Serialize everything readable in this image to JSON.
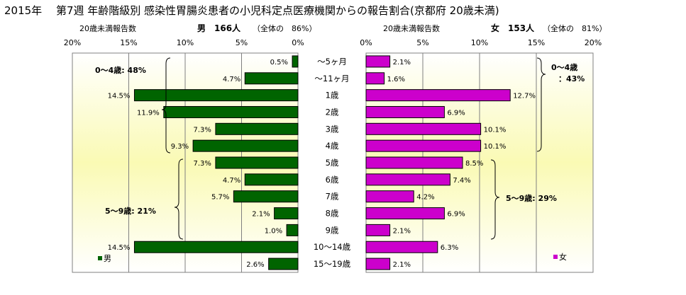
{
  "header": {
    "title": "2015年　 第7週 年齢階級別 感染性胃腸炎患者の小児科定点医療機関からの報告割合(京都府 20歳未満)",
    "male_caption": "20歳未満報告数",
    "male_summary": "男　166人",
    "male_share": "（全体の　86%）",
    "female_caption": "20歳未満報告数",
    "female_summary": "女　153人",
    "female_share": "（全体の　81%）"
  },
  "chart_data": [
    {
      "type": "bar",
      "orientation": "horizontal",
      "direction": "right-to-left",
      "series": [
        {
          "name": "男",
          "color": "#006400",
          "values": [
            0.5,
            4.7,
            14.5,
            11.9,
            7.3,
            9.3,
            7.3,
            4.7,
            5.7,
            2.1,
            1.0,
            14.5,
            2.6
          ]
        }
      ],
      "value_labels": [
        "0.5%",
        "4.7%",
        "14.5%",
        "11.9%",
        "7.3%",
        "9.3%",
        "7.3%",
        "4.7%",
        "5.7%",
        "2.1%",
        "1.0%",
        "14.5%",
        "2.6%"
      ],
      "xlim": [
        0,
        20
      ],
      "xticks": [
        "20%",
        "15%",
        "10%",
        "5%",
        "0%"
      ],
      "gridlines": true,
      "legend": {
        "label": "男",
        "color": "#006400",
        "position": "bottom-left"
      },
      "annotations": [
        {
          "text": "0～4歳: 48%"
        },
        {
          "text": "5～9歳: 21%"
        }
      ]
    },
    {
      "type": "bar",
      "orientation": "horizontal",
      "direction": "left-to-right",
      "series": [
        {
          "name": "女",
          "color": "#cc00cc",
          "values": [
            2.1,
            1.6,
            12.7,
            6.9,
            10.1,
            10.1,
            8.5,
            7.4,
            4.2,
            6.9,
            2.1,
            6.3,
            2.1
          ]
        }
      ],
      "value_labels": [
        "2.1%",
        "1.6%",
        "12.7%",
        "6.9%",
        "10.1%",
        "10.1%",
        "8.5%",
        "7.4%",
        "4.2%",
        "6.9%",
        "2.1%",
        "6.3%",
        "2.1%"
      ],
      "xlim": [
        0,
        20
      ],
      "xticks": [
        "0%",
        "5%",
        "10%",
        "15%",
        "20%"
      ],
      "gridlines": true,
      "legend": {
        "label": "女",
        "color": "#cc00cc",
        "position": "bottom-right"
      },
      "annotations": [
        {
          "text": "0～4歳"
        },
        {
          "text": "：43%"
        },
        {
          "text": "5～9歳: 29%"
        }
      ]
    }
  ],
  "categories": [
    "～5ヶ月",
    "～11ヶ月",
    "1歳",
    "2歳",
    "3歳",
    "4歳",
    "5歳",
    "6歳",
    "7歳",
    "8歳",
    "9歳",
    "10～14歳",
    "15～19歳"
  ],
  "colors": {
    "male_bar": "#006400",
    "female_bar": "#cc00cc",
    "plot_gradient_top": "#ffffff",
    "plot_gradient_mid": "#fafab4",
    "gridline": "#808080"
  }
}
